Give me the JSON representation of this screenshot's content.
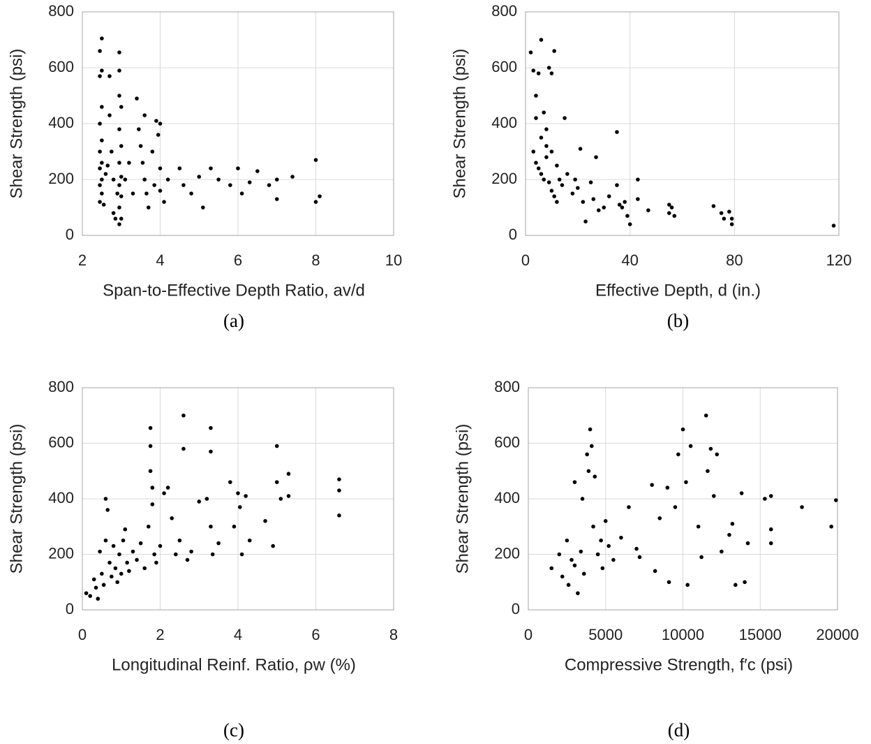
{
  "chart_data": [
    {
      "type": "scatter",
      "caption": "(a)",
      "xlabel": "Span-to-Effective Depth Ratio, av/d",
      "ylabel": "Shear Strength (psi)",
      "color": "#000000",
      "grid": true,
      "xlim": [
        2,
        10
      ],
      "xticks": [
        2,
        4,
        6,
        8,
        10
      ],
      "ylim": [
        0,
        800
      ],
      "yticks": [
        0,
        200,
        400,
        600,
        800
      ],
      "x": [
        2.45,
        2.5,
        2.5,
        2.45,
        2.5,
        2.45,
        2.5,
        2.45,
        2.5,
        2.45,
        2.5,
        2.45,
        2.5,
        2.45,
        2.55,
        2.6,
        2.65,
        2.7,
        2.7,
        2.75,
        2.8,
        2.8,
        2.85,
        2.9,
        2.95,
        2.95,
        2.95,
        3.0,
        2.95,
        3.0,
        2.95,
        3.0,
        2.95,
        3.0,
        2.95,
        3.0,
        2.95,
        3.1,
        3.2,
        3.3,
        3.4,
        3.45,
        3.5,
        3.55,
        3.6,
        3.6,
        3.65,
        3.7,
        3.8,
        3.85,
        3.9,
        3.95,
        4.0,
        4.0,
        4.0,
        4.1,
        4.2,
        4.5,
        4.6,
        4.8,
        5.0,
        5.1,
        5.3,
        5.5,
        5.8,
        6.0,
        6.1,
        6.3,
        6.5,
        6.8,
        7.0,
        7.0,
        7.4,
        8.0,
        8.0,
        8.1
      ],
      "y": [
        660,
        705,
        590,
        570,
        460,
        400,
        340,
        300,
        260,
        240,
        200,
        180,
        150,
        120,
        110,
        220,
        250,
        570,
        430,
        300,
        200,
        80,
        60,
        150,
        655,
        590,
        500,
        460,
        380,
        320,
        260,
        210,
        180,
        140,
        100,
        60,
        40,
        200,
        260,
        150,
        490,
        380,
        320,
        260,
        430,
        200,
        150,
        100,
        300,
        180,
        410,
        360,
        400,
        240,
        160,
        120,
        200,
        240,
        180,
        150,
        210,
        100,
        240,
        200,
        180,
        240,
        150,
        190,
        230,
        180,
        200,
        130,
        210,
        270,
        120,
        140
      ]
    },
    {
      "type": "scatter",
      "caption": "(b)",
      "xlabel": "Effective Depth, d (in.)",
      "ylabel": "Shear Strength (psi)",
      "color": "#000000",
      "grid": true,
      "xlim": [
        0,
        120
      ],
      "xticks": [
        0,
        40,
        80,
        120
      ],
      "ylim": [
        0,
        800
      ],
      "yticks": [
        0,
        200,
        400,
        600,
        800
      ],
      "x": [
        2,
        3,
        4,
        5,
        6,
        7,
        8,
        9,
        10,
        11,
        3,
        4,
        5,
        6,
        7,
        8,
        9,
        10,
        11,
        12,
        4,
        6,
        8,
        10,
        12,
        13,
        14,
        15,
        16,
        18,
        19,
        20,
        21,
        22,
        23,
        25,
        26,
        27,
        28,
        30,
        32,
        35,
        35,
        36,
        37,
        38,
        39,
        40,
        43,
        43,
        47,
        55,
        55,
        56,
        57,
        72,
        75,
        76,
        78,
        79,
        79,
        118
      ],
      "y": [
        655,
        590,
        500,
        580,
        700,
        440,
        380,
        600,
        580,
        660,
        300,
        260,
        240,
        220,
        200,
        280,
        190,
        160,
        140,
        120,
        420,
        350,
        320,
        300,
        250,
        200,
        180,
        420,
        220,
        150,
        200,
        170,
        310,
        120,
        50,
        190,
        130,
        280,
        90,
        100,
        140,
        370,
        180,
        110,
        100,
        120,
        70,
        40,
        200,
        130,
        90,
        110,
        80,
        100,
        70,
        105,
        80,
        60,
        85,
        60,
        40,
        35
      ]
    },
    {
      "type": "scatter",
      "caption": "(c)",
      "xlabel": "Longitudinal Reinf. Ratio, ρw (%)",
      "ylabel": "Shear Strength (psi)",
      "color": "#000000",
      "grid": true,
      "xlim": [
        0,
        8
      ],
      "xticks": [
        0,
        2,
        4,
        6,
        8
      ],
      "ylim": [
        0,
        800
      ],
      "yticks": [
        0,
        200,
        400,
        600,
        800
      ],
      "x": [
        0.1,
        0.2,
        0.3,
        0.35,
        0.4,
        0.45,
        0.5,
        0.55,
        0.6,
        0.6,
        0.65,
        0.7,
        0.75,
        0.8,
        0.85,
        0.9,
        0.95,
        1.0,
        1.05,
        1.1,
        1.15,
        1.2,
        1.3,
        1.4,
        1.5,
        1.6,
        1.7,
        1.75,
        1.75,
        1.75,
        1.8,
        1.8,
        1.85,
        1.9,
        2.0,
        2.1,
        2.2,
        2.3,
        2.4,
        2.5,
        2.6,
        2.6,
        2.7,
        2.8,
        3.0,
        3.2,
        3.3,
        3.3,
        3.3,
        3.35,
        3.5,
        3.8,
        3.9,
        4.0,
        4.05,
        4.1,
        4.2,
        4.3,
        4.7,
        4.9,
        5.0,
        5.0,
        5.1,
        5.3,
        5.3,
        6.6,
        6.6,
        6.6
      ],
      "y": [
        60,
        50,
        110,
        80,
        40,
        210,
        130,
        90,
        400,
        250,
        360,
        170,
        120,
        230,
        150,
        100,
        200,
        130,
        250,
        290,
        170,
        140,
        210,
        180,
        240,
        150,
        300,
        655,
        590,
        500,
        440,
        380,
        200,
        170,
        230,
        420,
        440,
        330,
        200,
        250,
        700,
        580,
        180,
        210,
        390,
        400,
        655,
        570,
        300,
        200,
        240,
        460,
        300,
        420,
        370,
        200,
        410,
        250,
        320,
        230,
        590,
        460,
        400,
        490,
        410,
        470,
        430,
        340
      ]
    },
    {
      "type": "scatter",
      "caption": "(d)",
      "xlabel": "Compressive Strength, f′c (psi)",
      "ylabel": "Shear Strength (psi)",
      "color": "#000000",
      "grid": true,
      "xlim": [
        0,
        20000
      ],
      "xticks": [
        0,
        5000,
        10000,
        15000,
        20000
      ],
      "ylim": [
        0,
        800
      ],
      "yticks": [
        0,
        200,
        400,
        600,
        800
      ],
      "x": [
        1500,
        2000,
        2200,
        2500,
        2600,
        2800,
        3000,
        3000,
        3200,
        3400,
        3500,
        3600,
        3800,
        3900,
        4000,
        4100,
        4200,
        4300,
        4500,
        4700,
        4800,
        5000,
        5200,
        5500,
        6000,
        6500,
        7000,
        7200,
        8000,
        8200,
        8500,
        9000,
        9100,
        9500,
        9700,
        10000,
        10200,
        10300,
        10500,
        11000,
        11200,
        11500,
        11600,
        11800,
        12000,
        12200,
        12500,
        13000,
        13200,
        13400,
        13800,
        14000,
        14200,
        15300,
        15700,
        15700,
        15700,
        17700,
        19600,
        19900
      ],
      "y": [
        150,
        200,
        120,
        250,
        90,
        180,
        460,
        160,
        60,
        210,
        400,
        130,
        560,
        500,
        650,
        590,
        300,
        480,
        200,
        250,
        150,
        320,
        230,
        180,
        260,
        370,
        220,
        190,
        450,
        140,
        330,
        440,
        100,
        370,
        560,
        650,
        460,
        90,
        590,
        300,
        190,
        700,
        500,
        580,
        410,
        560,
        210,
        270,
        310,
        90,
        420,
        100,
        240,
        400,
        410,
        290,
        240,
        370,
        300,
        395
      ]
    }
  ]
}
